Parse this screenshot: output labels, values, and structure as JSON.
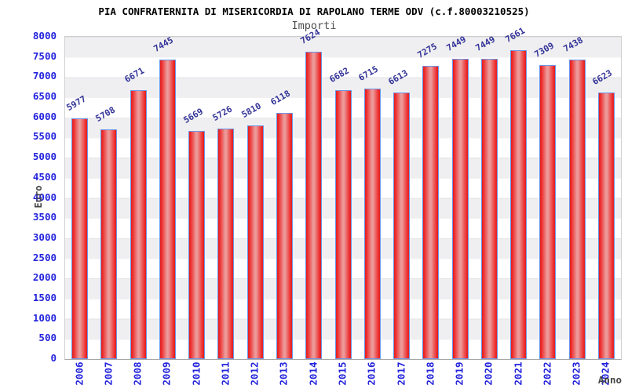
{
  "chart_data": {
    "type": "bar",
    "title": "PIA CONFRATERNITA DI MISERICORDIA DI RAPOLANO TERME ODV (c.f.80003210525)",
    "subtitle": "Importi",
    "xlabel": "Anno",
    "ylabel": "Euro",
    "ylim": [
      0,
      8000
    ],
    "ytick_step": 500,
    "legend": "none",
    "grid": "alternating horizontal bands every 500, gray and white",
    "categories": [
      "2006",
      "2007",
      "2008",
      "2009",
      "2010",
      "2011",
      "2012",
      "2013",
      "2014",
      "2015",
      "2016",
      "2017",
      "2018",
      "2019",
      "2020",
      "2021",
      "2022",
      "2023",
      "2024"
    ],
    "values": [
      5977,
      5708,
      6671,
      7445,
      5669,
      5726,
      5810,
      6118,
      7624,
      6682,
      6715,
      6613,
      7275,
      7449,
      7449,
      7661,
      7309,
      7438,
      6623
    ],
    "colors": {
      "bar_fill_edge": "#e01f1f",
      "bar_fill_center": "#ec9a9a",
      "bar_border": "#6b96e8",
      "tick_label": "#2323dd",
      "value_label": "#333399",
      "title": "#000000",
      "subtitle": "#4d4d4d",
      "axis_title": "#444444",
      "band_gray": "#efeff1",
      "band_white": "#ffffff",
      "plot_border": "#cfcfcf"
    }
  }
}
